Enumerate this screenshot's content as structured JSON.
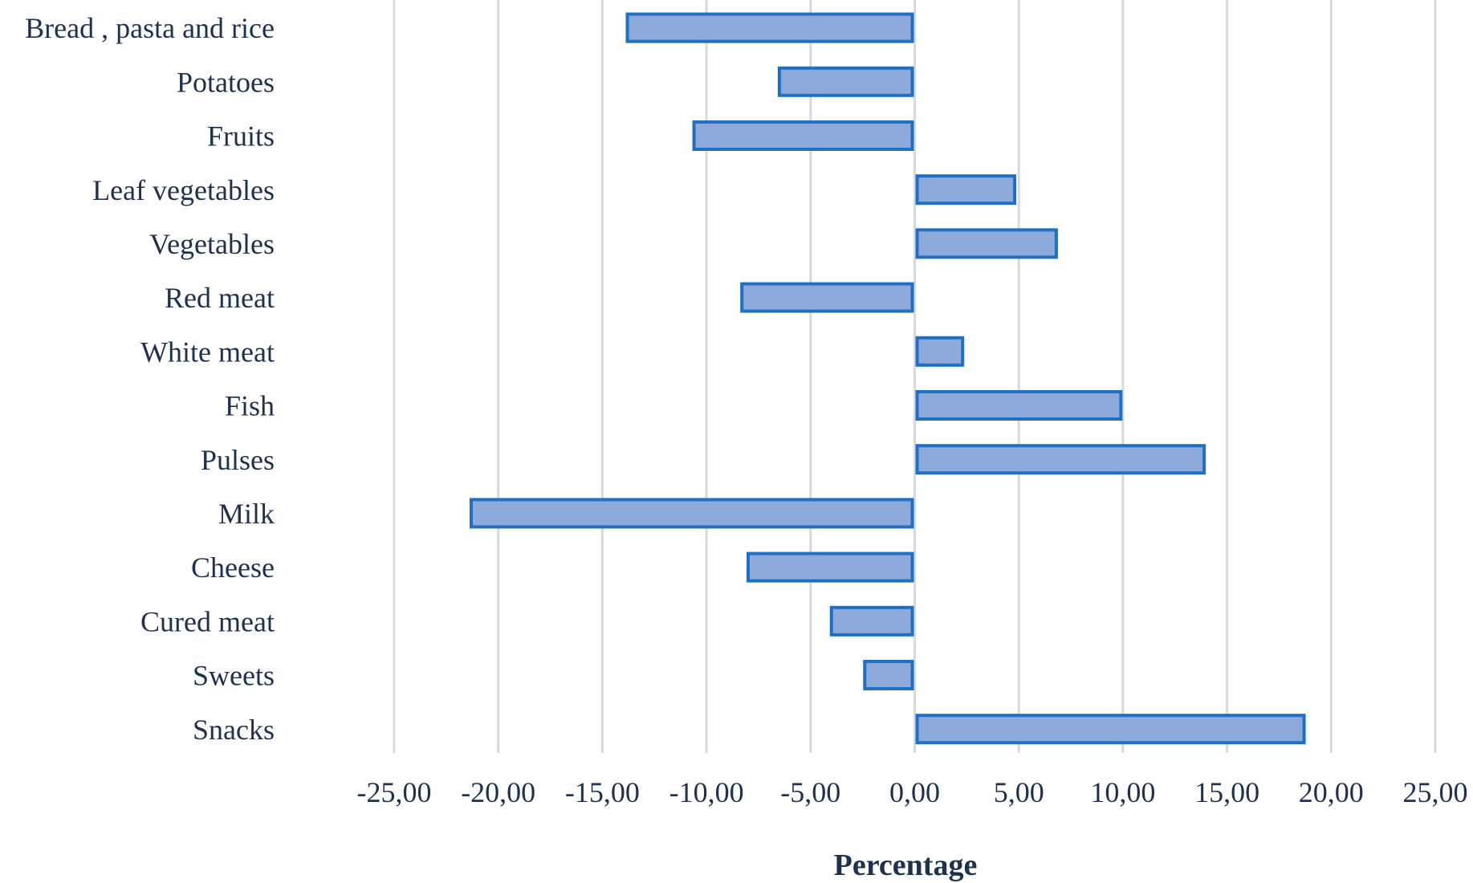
{
  "chart_data": {
    "type": "bar",
    "orientation": "horizontal",
    "categories": [
      "Bread , pasta and rice",
      "Potatoes",
      "Fruits",
      "Leaf vegetables",
      "Vegetables",
      "Red meat",
      "White meat",
      "Fish",
      "Pulses",
      "Milk",
      "Cheese",
      "Cured meat",
      "Sweets",
      "Snacks"
    ],
    "values": [
      -13.8,
      -6.5,
      -10.6,
      4.8,
      6.8,
      -8.3,
      2.3,
      9.9,
      13.9,
      -21.3,
      -8.0,
      -4.0,
      -2.4,
      18.7
    ],
    "xlabel": "Percentage",
    "ylabel": "",
    "xlim": [
      -25,
      25
    ],
    "xticks": [
      -25,
      -20,
      -15,
      -10,
      -5,
      0,
      5,
      10,
      15,
      20,
      25
    ],
    "xtick_labels": [
      "-25,00",
      "-20,00",
      "-15,00",
      "-10,00",
      "-5,00",
      "0,00",
      "5,00",
      "10,00",
      "15,00",
      "20,00",
      "25,00"
    ],
    "grid": "vertical",
    "legend": "none",
    "colors": {
      "bar_fill": "#8eaadb",
      "bar_stroke": "#1f6fc5",
      "grid": "#d5d9e0",
      "text": "#1f3150"
    }
  }
}
